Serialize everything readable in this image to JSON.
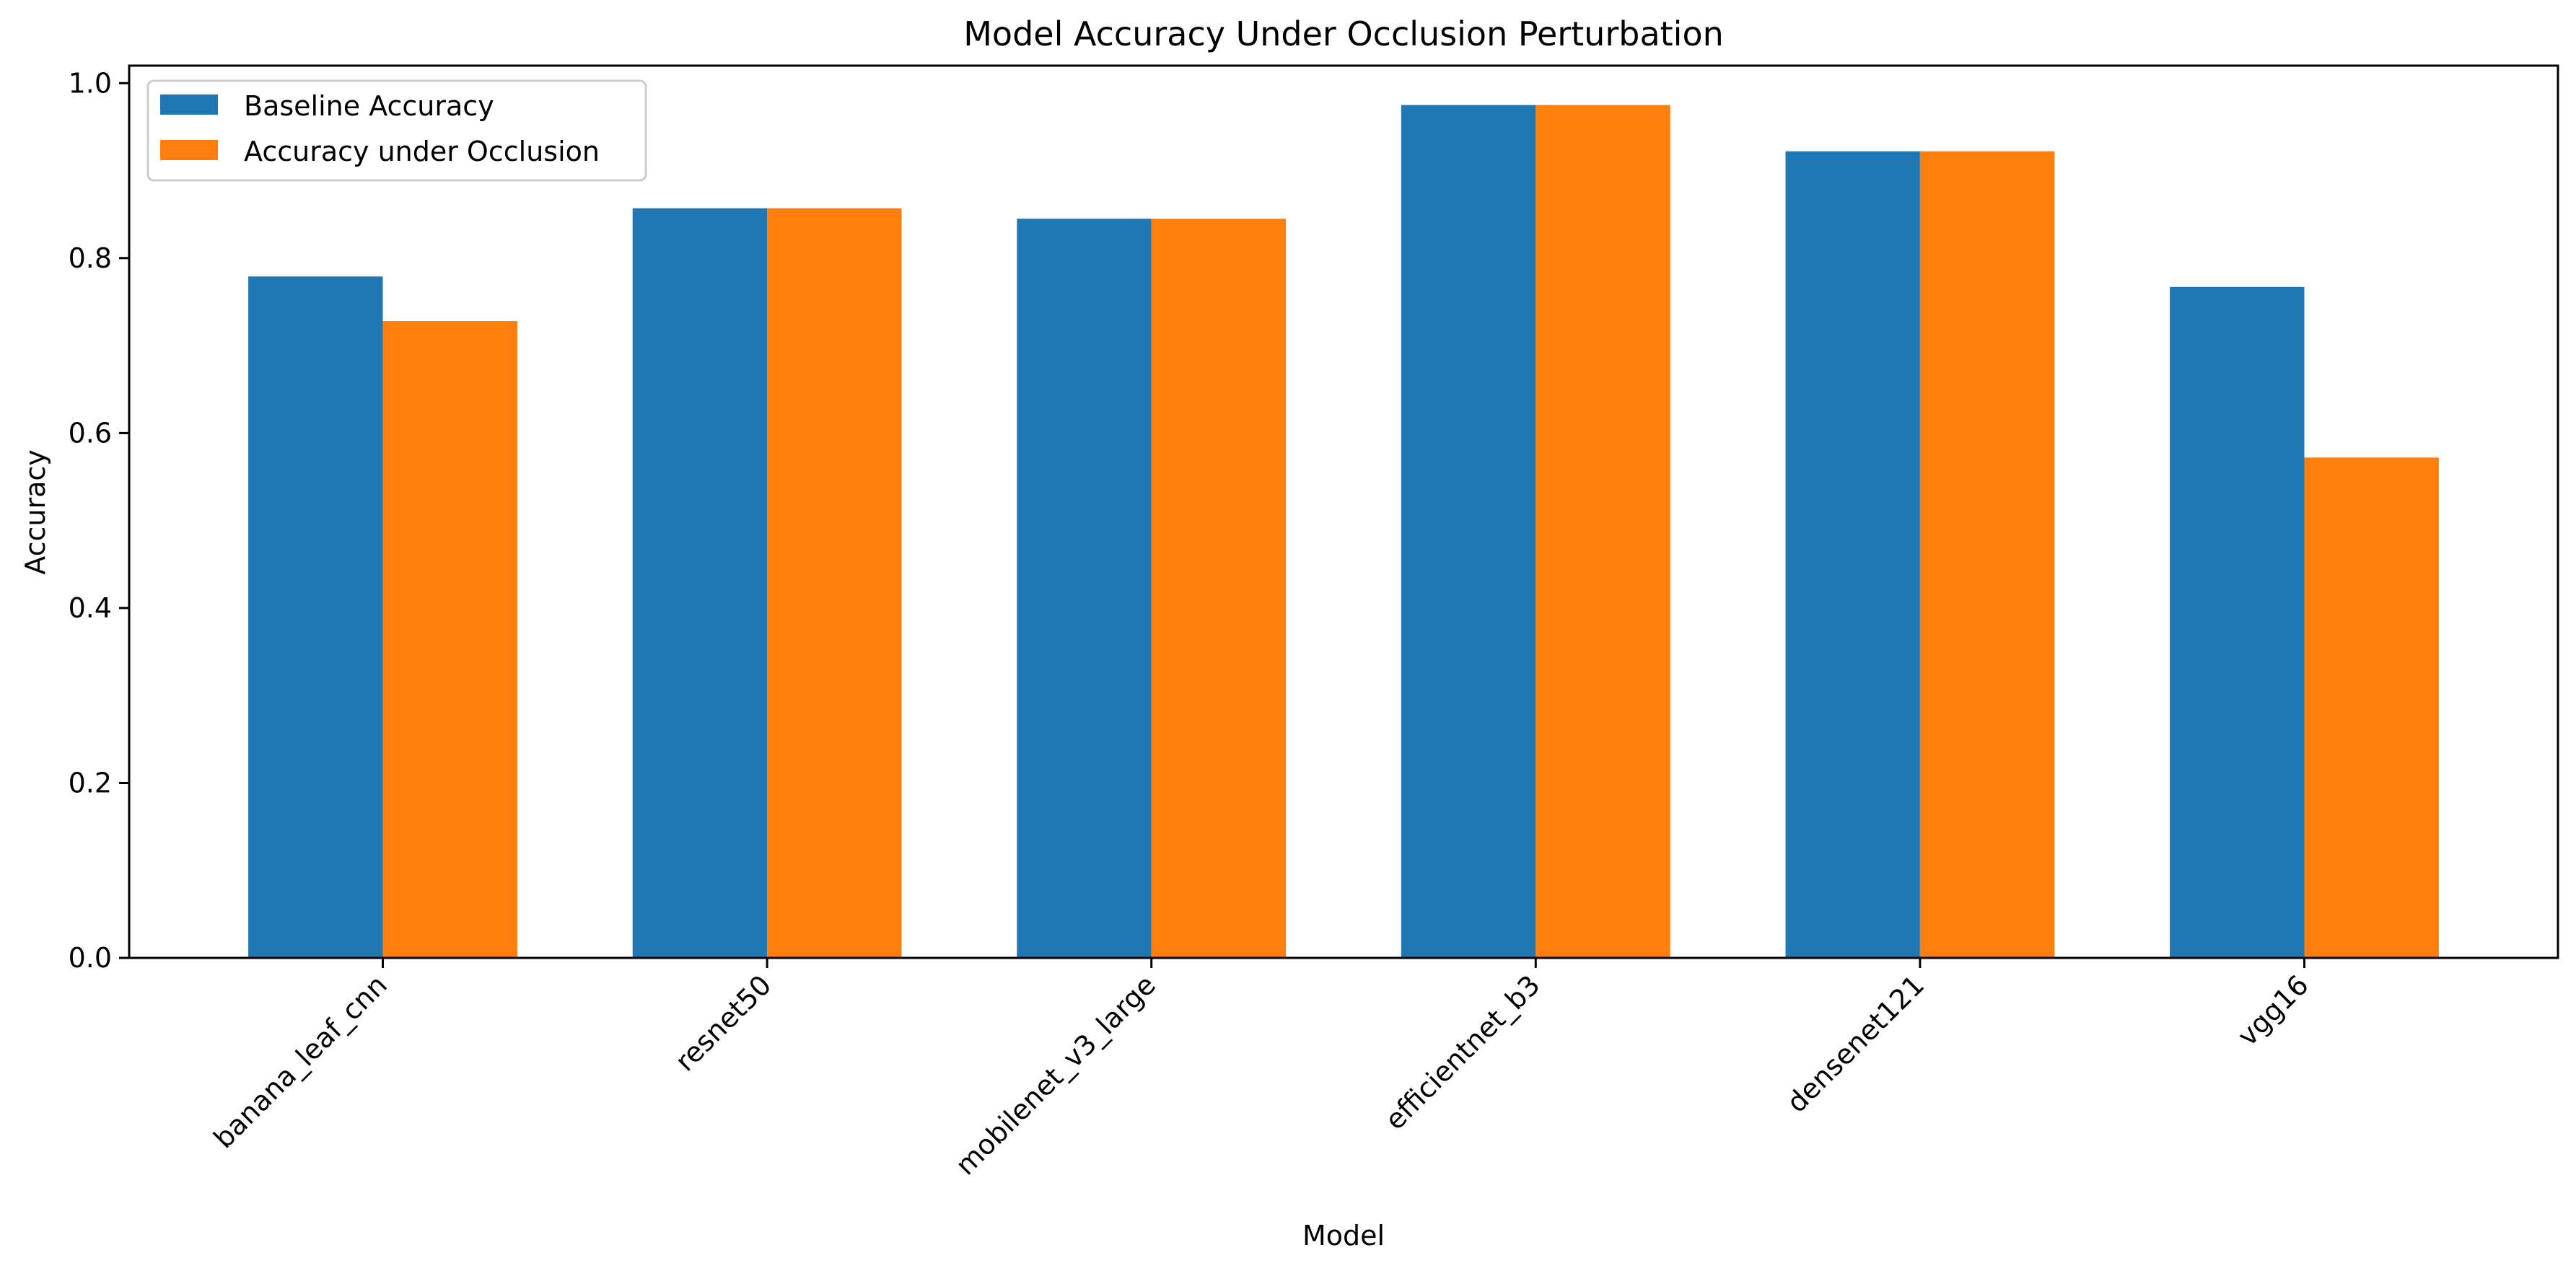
{
  "chart_data": {
    "type": "bar",
    "title": "Model Accuracy Under Occlusion Perturbation",
    "xlabel": "Model",
    "ylabel": "Accuracy",
    "categories": [
      "banana_leaf_cnn",
      "resnet50",
      "mobilenet_v3_large",
      "efficientnet_b3",
      "densenet121",
      "vgg16"
    ],
    "series": [
      {
        "name": "Baseline Accuracy",
        "color": "#1f77b4",
        "values": [
          0.779,
          0.857,
          0.845,
          0.975,
          0.922,
          0.767
        ]
      },
      {
        "name": "Accuracy under Occlusion",
        "color": "#ff7f0e",
        "values": [
          0.728,
          0.857,
          0.845,
          0.975,
          0.922,
          0.572
        ]
      }
    ],
    "ylim": [
      0,
      1.02
    ],
    "yticks": [
      0.0,
      0.2,
      0.4,
      0.6,
      0.8,
      1.0
    ],
    "ytick_labels": [
      "0.0",
      "0.2",
      "0.4",
      "0.6",
      "0.8",
      "1.0"
    ],
    "grid": false,
    "legend_position": "top-left"
  }
}
